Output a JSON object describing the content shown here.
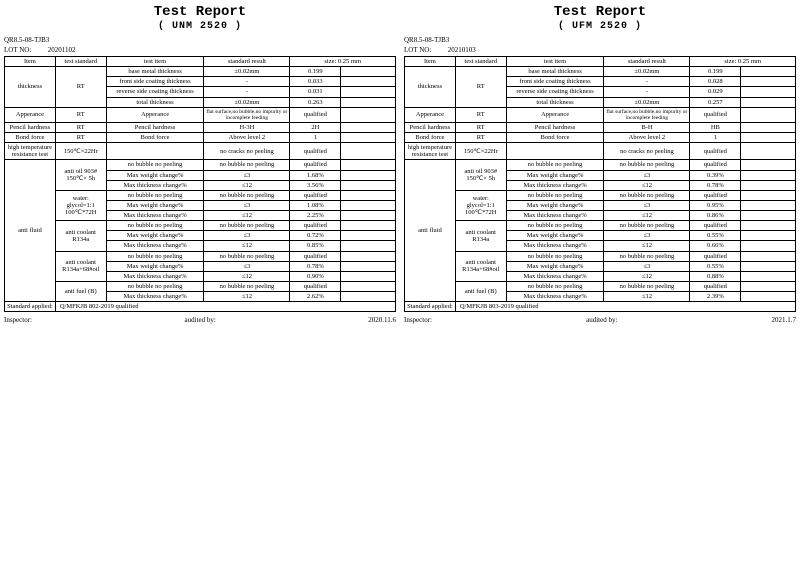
{
  "left": {
    "title": "Test Report",
    "subtitle": "(  UNM 2520 )",
    "doc_no": "QR8.5-08-TJB3",
    "lot_label": "LOT NO:",
    "lot_no": "20201102",
    "headers": {
      "item": "Item",
      "test_std": "test standard",
      "test_item": "test item",
      "std_result": "standard result",
      "size_label": "size:",
      "size_val": "0.25 mm"
    },
    "thickness": {
      "label": "thickness",
      "std": "RT",
      "rows": [
        {
          "item": "base metal thickness",
          "std": "±0.02mm",
          "v1": "0.199"
        },
        {
          "item": "front side coating thickness",
          "std": "-",
          "v1": "0.033"
        },
        {
          "item": "reverse side coating thickness",
          "std": "-",
          "v1": "0.031"
        },
        {
          "item": "total thickness",
          "std": "±0.02mm",
          "v1": "0.263"
        }
      ]
    },
    "apperance": {
      "label": "Apperance",
      "std": "RT",
      "item": "Apperance",
      "req": "flat surface,no bubble,no impurity or incomplete feeding",
      "res": "qualified"
    },
    "pencil": {
      "label": "Pencil hardness",
      "std": "RT",
      "item": "Pencil hardness",
      "req": "H-3H",
      "res": "2H"
    },
    "bond": {
      "label": "Bond force",
      "std": "RT",
      "item": "Bond force",
      "req": "Above level 2",
      "res": "1"
    },
    "hitemp": {
      "label": "high temperature resistance test",
      "std": "150℃×22Hr",
      "req": "no cracks  no peeling",
      "res": "qualified"
    },
    "antifluid": {
      "label": "anti fluid",
      "groups": [
        {
          "std": "anti oil 903# 150℃× 5h",
          "rows": [
            {
              "item": "no bubble  no peeling",
              "req": "no bubble  no peeling",
              "res": "qualified"
            },
            {
              "item": "Max weight change%",
              "req": "≤3",
              "res": "1.68%"
            },
            {
              "item": "Max thickness change%",
              "req": "≤12",
              "res": "3.56%"
            }
          ]
        },
        {
          "std": "water: glycol=1:1 100℃*72H",
          "rows": [
            {
              "item": "no bubble  no peeling",
              "req": "no bubble  no peeling",
              "res": "qualified"
            },
            {
              "item": "Max weight change%",
              "req": "≤3",
              "res": "1.08%"
            },
            {
              "item": "Max thickness change%",
              "req": "≤12",
              "res": "2.25%"
            }
          ]
        },
        {
          "std": "anti coolant R134a",
          "rows": [
            {
              "item": "no bubble  no peeling",
              "req": "no bubble  no peeling",
              "res": "qualified"
            },
            {
              "item": "Max weight change%",
              "req": "≤3",
              "res": "0.72%"
            },
            {
              "item": "Max thickness change%",
              "req": "≤12",
              "res": "0.85%"
            }
          ]
        },
        {
          "std": "anti coolant R134a+68#oil",
          "rows": [
            {
              "item": "no bubble  no peeling",
              "req": "no bubble  no peeling",
              "res": "qualified"
            },
            {
              "item": "Max weight change%",
              "req": "≤3",
              "res": "0.78%"
            },
            {
              "item": "Max thickness change%",
              "req": "≤12",
              "res": "0.90%"
            }
          ]
        },
        {
          "std": "anti fuel (B)",
          "rows": [
            {
              "item": "no bubble  no peeling",
              "req": "no bubble  no peeling",
              "res": "qualified"
            },
            {
              "item": "Max thickness change%",
              "req": "≤12",
              "res": "2.62%"
            }
          ]
        }
      ]
    },
    "std_applied": {
      "label": "Standard applied:",
      "val": "Q/MFKJB 802-2019  qualified"
    },
    "footer": {
      "inspector": "Inspector:",
      "audited": "audited by:",
      "date": "2020.11.6"
    }
  },
  "right": {
    "title": "Test Report",
    "subtitle": "(  UFM 2520 )",
    "doc_no": "QR8.5-08-TJB3",
    "lot_label": "LOT NO:",
    "lot_no": "20210103",
    "headers": {
      "item": "Item",
      "test_std": "test standard",
      "test_item": "test item",
      "std_result": "standard result",
      "size_label": "size:",
      "size_val": "0.25 mm"
    },
    "thickness": {
      "label": "thickness",
      "std": "RT",
      "rows": [
        {
          "item": "base metal thickness",
          "std": "±0.02mm",
          "v1": "0.199"
        },
        {
          "item": "front side coating thickness",
          "std": "-",
          "v1": "0.028"
        },
        {
          "item": "reverse side coating thickness",
          "std": "-",
          "v1": "0.029"
        },
        {
          "item": "total thickness",
          "std": "±0.02mm",
          "v1": "0.257"
        }
      ]
    },
    "apperance": {
      "label": "Apperance",
      "std": "RT",
      "item": "Apperance",
      "req": "flat surface,no bubble,no impurity or incomplete feeding",
      "res": "qualified"
    },
    "pencil": {
      "label": "Pencil hardness",
      "std": "RT",
      "item": "Pencil hardness",
      "req": "B-H",
      "res": "HB"
    },
    "bond": {
      "label": "Bond force",
      "std": "RT",
      "item": "Bond force",
      "req": "Above level 2",
      "res": "1"
    },
    "hitemp": {
      "label": "high temperature resistance test",
      "std": "150℃×22Hr",
      "req": "no cracks  no peeling",
      "res": "qualified"
    },
    "antifluid": {
      "label": "anti fluid",
      "groups": [
        {
          "std": "anti oil 903# 150℃× 5h",
          "rows": [
            {
              "item": "no bubble  no peeling",
              "req": "no bubble  no peeling",
              "res": "qualified"
            },
            {
              "item": "Max weight change%",
              "req": "≤3",
              "res": "0.39%"
            },
            {
              "item": "Max thickness change%",
              "req": "≤12",
              "res": "0.78%"
            }
          ]
        },
        {
          "std": "water: glycol=1:1 100℃*72H",
          "rows": [
            {
              "item": "no bubble  no peeling",
              "req": "no bubble  no peeling",
              "res": "qualified"
            },
            {
              "item": "Max weight change%",
              "req": "≤3",
              "res": "0.95%"
            },
            {
              "item": "Max thickness change%",
              "req": "≤12",
              "res": "0.86%"
            }
          ]
        },
        {
          "std": "anti coolant R134a",
          "rows": [
            {
              "item": "no bubble  no peeling",
              "req": "no bubble  no peeling",
              "res": "qualified"
            },
            {
              "item": "Max weight change%",
              "req": "≤3",
              "res": "0.55%"
            },
            {
              "item": "Max thickness change%",
              "req": "≤12",
              "res": "0.66%"
            }
          ]
        },
        {
          "std": "anti coolant R134a+68#oil",
          "rows": [
            {
              "item": "no bubble  no peeling",
              "req": "no bubble  no peeling",
              "res": "qualified"
            },
            {
              "item": "Max weight change%",
              "req": "≤3",
              "res": "0.55%"
            },
            {
              "item": "Max thickness change%",
              "req": "≤12",
              "res": "0.88%"
            }
          ]
        },
        {
          "std": "anti fuel (B)",
          "rows": [
            {
              "item": "no bubble  no peeling",
              "req": "no bubble  no peeling",
              "res": "qualified"
            },
            {
              "item": "Max thickness change%",
              "req": "≤12",
              "res": "2.39%"
            }
          ]
        }
      ]
    },
    "std_applied": {
      "label": "Standard applied:",
      "val": "Q/MFKJB 803-2019  qualified"
    },
    "footer": {
      "inspector": "Inspector:",
      "audited": "audited by:",
      "date": "2021.1.7"
    }
  }
}
